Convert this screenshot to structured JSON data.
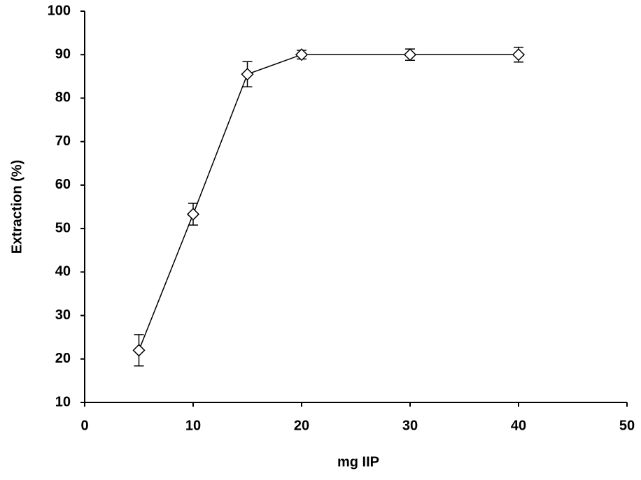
{
  "chart_data": {
    "type": "line",
    "x_label": "mg IIP",
    "y_label": "Extraction (%)",
    "x": [
      5,
      10,
      15,
      20,
      30,
      40
    ],
    "values": [
      22,
      53.3,
      85.5,
      90,
      90,
      90
    ],
    "errors": [
      3.6,
      2.5,
      2.9,
      1,
      1.3,
      1.7
    ],
    "color": "#000000",
    "xlim": [
      0,
      50
    ],
    "xticks": [
      0,
      10,
      20,
      30,
      40,
      50
    ],
    "ylim": [
      10,
      100
    ],
    "yticks": [
      10,
      20,
      30,
      40,
      50,
      60,
      70,
      80,
      90,
      100
    ],
    "grid": false
  }
}
